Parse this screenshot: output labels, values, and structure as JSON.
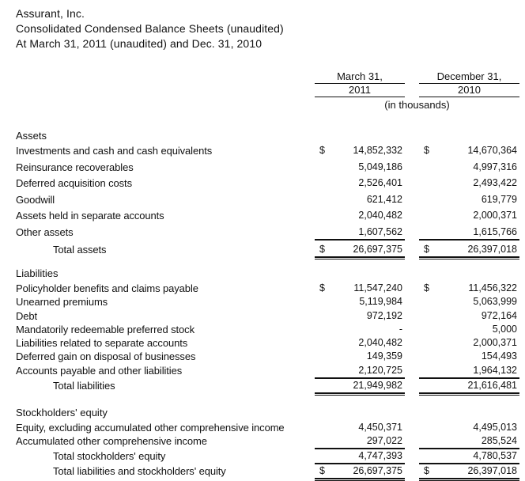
{
  "header": {
    "company": "Assurant, Inc.",
    "title": "Consolidated Condensed Balance Sheets (unaudited)",
    "subtitle": "At March 31, 2011 (unaudited) and Dec. 31, 2010"
  },
  "columns": {
    "col1_line1": "March 31,",
    "col1_line2": "2011",
    "col2_line1": "December 31,",
    "col2_line2": "2010",
    "units": "(in thousands)"
  },
  "sections": [
    {
      "title": "Assets",
      "rows": [
        {
          "label": "Investments and cash and cash equivalents",
          "d1": "$",
          "v1": "14,852,332",
          "d2": "$",
          "v2": "14,670,364"
        },
        {
          "label": "Reinsurance recoverables",
          "v1": "5,049,186",
          "v2": "4,997,316"
        },
        {
          "label": "Deferred acquisition costs",
          "v1": "2,526,401",
          "v2": "2,493,422"
        },
        {
          "label": "Goodwill",
          "v1": "621,412",
          "v2": "619,779"
        },
        {
          "label": "Assets held in separate accounts",
          "v1": "2,040,482",
          "v2": "2,000,371"
        },
        {
          "label": "Other assets",
          "v1": "1,607,562",
          "v2": "1,615,766"
        },
        {
          "label": "Total assets",
          "d1": "$",
          "v1": "26,697,375",
          "d2": "$",
          "v2": "26,397,018"
        }
      ]
    },
    {
      "title": "Liabilities",
      "rows": [
        {
          "label": "Policyholder benefits and claims payable",
          "d1": "$",
          "v1": "11,547,240",
          "d2": "$",
          "v2": "11,456,322"
        },
        {
          "label": "Unearned premiums",
          "v1": "5,119,984",
          "v2": "5,063,999"
        },
        {
          "label": "Debt",
          "v1": "972,192",
          "v2": "972,164"
        },
        {
          "label": "Mandatorily redeemable preferred stock",
          "v1": "-",
          "v2": "5,000"
        },
        {
          "label": "Liabilities related to separate accounts",
          "v1": "2,040,482",
          "v2": "2,000,371"
        },
        {
          "label": "Deferred gain on disposal of businesses",
          "v1": "149,359",
          "v2": "154,493"
        },
        {
          "label": "Accounts payable and other liabilities",
          "v1": "2,120,725",
          "v2": "1,964,132"
        },
        {
          "label": "Total liabilities",
          "v1": "21,949,982",
          "v2": "21,616,481"
        }
      ]
    },
    {
      "title": "Stockholders' equity",
      "rows": [
        {
          "label": "Equity, excluding accumulated other comprehensive income",
          "v1": "4,450,371",
          "v2": "4,495,013"
        },
        {
          "label": "Accumulated other comprehensive income",
          "v1": "297,022",
          "v2": "285,524"
        },
        {
          "label": "Total stockholders' equity",
          "v1": "4,747,393",
          "v2": "4,780,537"
        },
        {
          "label": "Total liabilities and stockholders' equity",
          "d1": "$",
          "v1": "26,697,375",
          "d2": "$",
          "v2": "26,397,018"
        }
      ]
    }
  ]
}
